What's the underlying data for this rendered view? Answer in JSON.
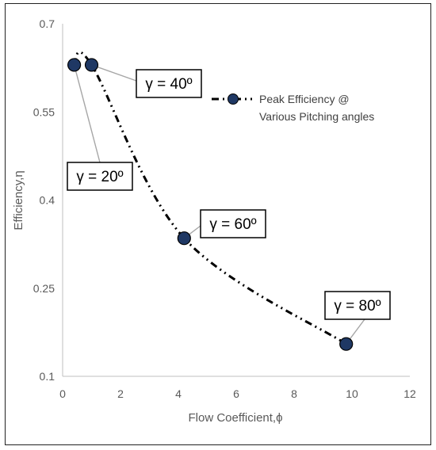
{
  "chart_data": {
    "type": "scatter",
    "xlabel": "Flow Coefficient,ϕ",
    "ylabel": "Efficiency,η",
    "xlim": [
      0,
      12
    ],
    "ylim": [
      0.1,
      0.7
    ],
    "xticks": [
      "0",
      "2",
      "4",
      "6",
      "8",
      "10",
      "12"
    ],
    "yticks": [
      "0.1",
      "0.25",
      "0.4",
      "0.55",
      "0.7"
    ],
    "grid": false,
    "legend_position": "right",
    "series": [
      {
        "name": "Peak Efficiency @ Various Pitching angles",
        "name_lines": [
          "Peak Efficiency @",
          "Various Pitching angles"
        ],
        "marker_color": "#1f3864",
        "line_style": "dash-dot-dot",
        "points": [
          {
            "x": 0.4,
            "y": 0.63,
            "label": "γ = 20º"
          },
          {
            "x": 1.0,
            "y": 0.63,
            "label": "γ = 40º"
          },
          {
            "x": 4.2,
            "y": 0.335,
            "label": "γ = 60º"
          },
          {
            "x": 9.8,
            "y": 0.155,
            "label": "γ = 80º"
          }
        ]
      }
    ]
  }
}
